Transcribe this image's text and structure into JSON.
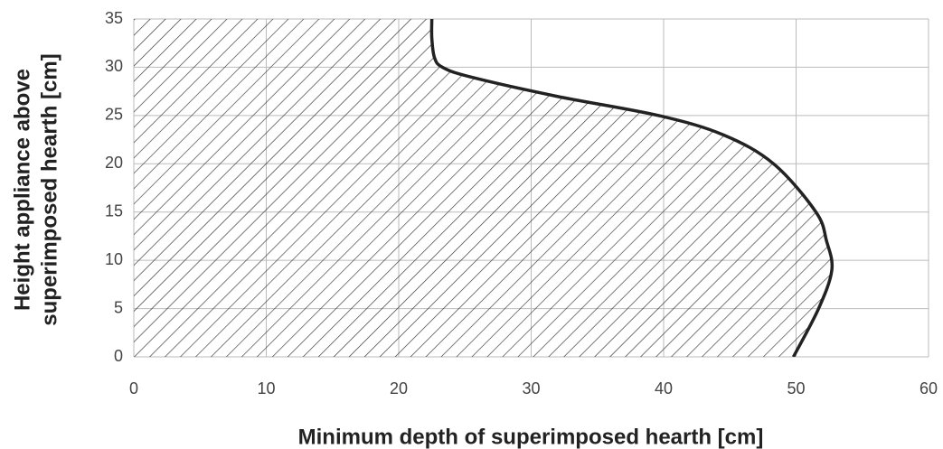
{
  "chart_data": {
    "type": "area",
    "xlabel": "Minimum depth of superimposed hearth [cm]",
    "ylabel": [
      "Height appliance above",
      "superimposed hearth [cm]"
    ],
    "x": [
      49.8,
      51.7,
      52.7,
      52.3,
      51.5,
      48.3,
      44.5,
      39.6,
      31.9,
      25.4,
      23.3,
      22.7,
      22.5,
      22.5
    ],
    "series": [
      {
        "color": "#222222",
        "values": [
          0,
          5,
          9,
          12,
          15,
          20,
          23,
          25,
          27,
          29,
          30,
          31,
          33,
          35
        ]
      }
    ],
    "xlim": [
      0,
      60
    ],
    "xticks": [
      0,
      10,
      20,
      30,
      40,
      50,
      60
    ],
    "ylim": [
      0,
      35
    ],
    "yticks": [
      0,
      5,
      10,
      15,
      20,
      25,
      30,
      35
    ],
    "grid": true,
    "fill": "hatch"
  }
}
